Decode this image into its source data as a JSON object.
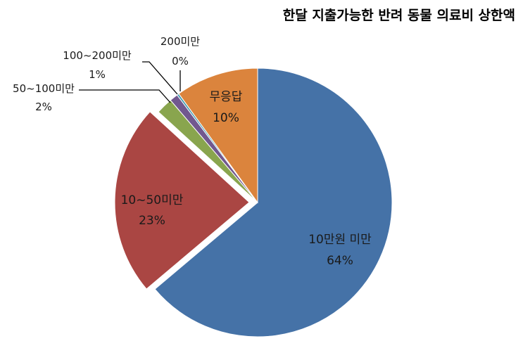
{
  "chart_data": {
    "type": "pie",
    "title": "한달 지출가능한 반려 동물 의료비 상한액",
    "slices": [
      {
        "label": "10만원 미만",
        "value": 64,
        "value_label": "64%",
        "color": "#4572A7"
      },
      {
        "label": "10~50미만",
        "value": 23,
        "value_label": "23%",
        "color": "#AA4643"
      },
      {
        "label": "50~100미만",
        "value": 2,
        "value_label": "2%",
        "color": "#89A54E"
      },
      {
        "label": "100~200미만",
        "value": 1,
        "value_label": "1%",
        "color": "#71588F"
      },
      {
        "label": "200미만",
        "value": 0,
        "value_label": "0%",
        "color": "#4198AF"
      },
      {
        "label": "무응답",
        "value": 10,
        "value_label": "10%",
        "color": "#DB843D"
      }
    ]
  }
}
